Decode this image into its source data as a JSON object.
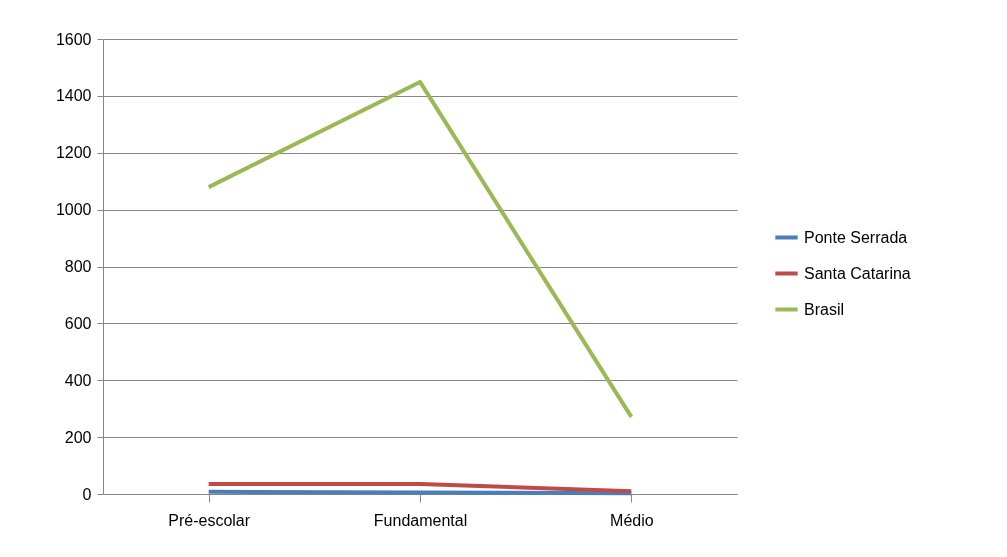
{
  "chart_data": {
    "type": "line",
    "categories": [
      "Pré-escolar",
      "Fundamental",
      "Médio"
    ],
    "series": [
      {
        "name": "Ponte Serrada",
        "color": "#4a7ebb",
        "values": [
          8,
          5,
          3
        ]
      },
      {
        "name": "Santa Catarina",
        "color": "#be4b48",
        "values": [
          35,
          35,
          10
        ]
      },
      {
        "name": "Brasil",
        "color": "#98b954",
        "values": [
          1079,
          1449,
          271
        ]
      }
    ],
    "ylim": [
      0,
      1600
    ],
    "yticks": [
      0,
      200,
      400,
      600,
      800,
      1000,
      1200,
      1400,
      1600
    ],
    "grid": "y",
    "legend": "right",
    "marker": "none",
    "line_style": "solid"
  }
}
